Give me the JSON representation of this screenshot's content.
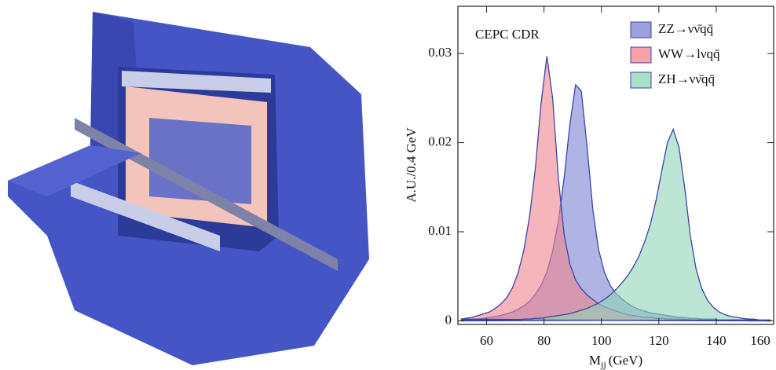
{
  "chart_data": {
    "type": "histogram-area",
    "annotation": "CEPC CDR",
    "y_label": "A.U./0.4 GeV",
    "x_label_symbol": "M",
    "x_label_subscript": "jj",
    "x_label_unit": "(GeV)",
    "xlim": [
      50,
      160
    ],
    "xticks": [
      60,
      80,
      100,
      120,
      140,
      160
    ],
    "ylim": [
      -0.0004,
      0.0353
    ],
    "yticks": [
      0,
      0.01,
      0.02,
      0.03
    ],
    "outline_color": "#3b44a8",
    "x": [
      51,
      53,
      55,
      57,
      59,
      61,
      63,
      65,
      67,
      69,
      71,
      73,
      75,
      77,
      79,
      81,
      83,
      85,
      87,
      89,
      91,
      93,
      95,
      97,
      99,
      101,
      103,
      105,
      107,
      109,
      111,
      113,
      115,
      117,
      119,
      121,
      123,
      125,
      127,
      129,
      131,
      133,
      135,
      137,
      139,
      141,
      143,
      145,
      147,
      149,
      151,
      153,
      155,
      157,
      159
    ],
    "series": [
      {
        "name": "ZZ→νν̄qq̄",
        "color": "#7b82d2",
        "values": [
          0.0001,
          0.0001,
          0.0002,
          0.0002,
          0.0003,
          0.0004,
          0.0005,
          0.0006,
          0.0008,
          0.001,
          0.0013,
          0.0017,
          0.0022,
          0.003,
          0.004,
          0.0055,
          0.0078,
          0.0112,
          0.016,
          0.022,
          0.0265,
          0.0258,
          0.0195,
          0.0125,
          0.008,
          0.0055,
          0.004,
          0.0031,
          0.0025,
          0.002,
          0.0016,
          0.0013,
          0.0011,
          0.0009,
          0.0008,
          0.0007,
          0.0006,
          0.0005,
          0.0004,
          0.0004,
          0.0003,
          0.0003,
          0.0002,
          0.0002,
          0.0002,
          0.0001,
          0.0001,
          0.0001,
          0.0001,
          0.0001,
          0.0001,
          0.0001,
          0,
          0,
          0
        ]
      },
      {
        "name": "WW→lνqq̄",
        "color": "#f0848e",
        "values": [
          0.0002,
          0.0003,
          0.0004,
          0.0006,
          0.0008,
          0.001,
          0.0014,
          0.0019,
          0.0026,
          0.0037,
          0.0054,
          0.008,
          0.0118,
          0.0172,
          0.0245,
          0.0297,
          0.025,
          0.016,
          0.0097,
          0.0064,
          0.0046,
          0.0036,
          0.0029,
          0.0024,
          0.0019,
          0.0016,
          0.0013,
          0.0011,
          0.0009,
          0.0007,
          0.0006,
          0.0005,
          0.0004,
          0.0004,
          0.0003,
          0.0003,
          0.0002,
          0.0002,
          0.0002,
          0.0002,
          0.0001,
          0.0001,
          0.0001,
          0.0001,
          0.0001,
          0.0001,
          0.0001,
          0.0001,
          0.0001,
          0.0001,
          0,
          0,
          0,
          0,
          0
        ]
      },
      {
        "name": "ZH→νν̄qq̄",
        "color": "#8fd6b6",
        "values": [
          0,
          0,
          0,
          0,
          0,
          0,
          0,
          0.0001,
          0.0001,
          0.0001,
          0.0001,
          0.0002,
          0.0002,
          0.0003,
          0.0003,
          0.0004,
          0.0005,
          0.0006,
          0.0007,
          0.0008,
          0.001,
          0.0012,
          0.0014,
          0.0017,
          0.002,
          0.0024,
          0.0029,
          0.0035,
          0.0042,
          0.005,
          0.006,
          0.0072,
          0.0088,
          0.0108,
          0.0135,
          0.0168,
          0.02,
          0.0215,
          0.0195,
          0.015,
          0.0095,
          0.0058,
          0.0036,
          0.0023,
          0.0015,
          0.001,
          0.0007,
          0.0005,
          0.0004,
          0.0003,
          0.0002,
          0.0002,
          0.0001,
          0.0001,
          0.0001
        ]
      }
    ]
  }
}
